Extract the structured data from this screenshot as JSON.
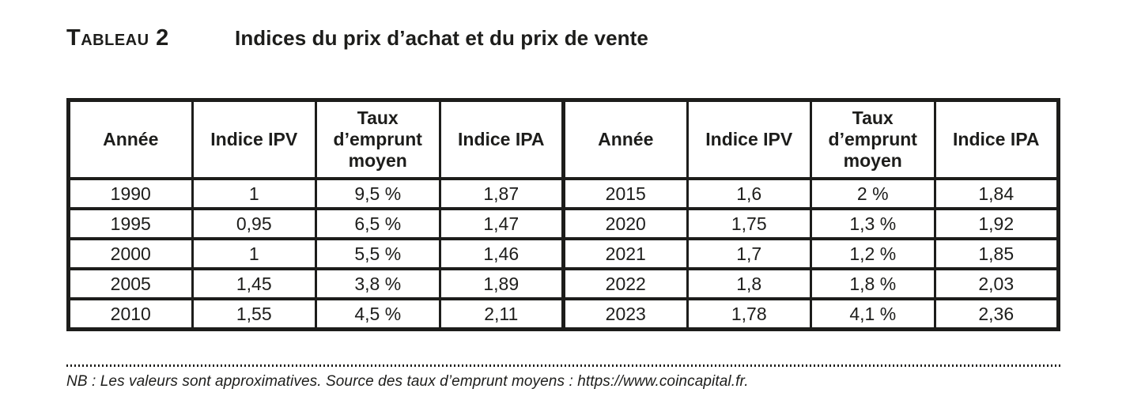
{
  "page": {
    "title_label": "Tableau 2",
    "title_text": "Indices du prix d’achat et du prix de vente",
    "footnote": "NB : Les valeurs sont approximatives. Source des taux d’emprunt moyens : https://www.coincapital.fr."
  },
  "colors": {
    "text": "#1d1d1b",
    "border": "#1d1d1b",
    "background": "#ffffff"
  },
  "table": {
    "headers": [
      "Année",
      "Indice IPV",
      "Taux\nd’emprunt\nmoyen",
      "Indice IPA",
      "Année",
      "Indice IPV",
      "Taux\nd’emprunt\nmoyen",
      "Indice IPA"
    ],
    "rows": [
      [
        "1990",
        "1",
        "9,5 %",
        "1,87",
        "2015",
        "1,6",
        "2 %",
        "1,84"
      ],
      [
        "1995",
        "0,95",
        "6,5 %",
        "1,47",
        "2020",
        "1,75",
        "1,3 %",
        "1,92"
      ],
      [
        "2000",
        "1",
        "5,5 %",
        "1,46",
        "2021",
        "1,7",
        "1,2 %",
        "1,85"
      ],
      [
        "2005",
        "1,45",
        "3,8 %",
        "1,89",
        "2022",
        "1,8",
        "1,8 %",
        "2,03"
      ],
      [
        "2010",
        "1,55",
        "4,5 %",
        "2,11",
        "2023",
        "1,78",
        "4,1 %",
        "2,36"
      ]
    ]
  }
}
